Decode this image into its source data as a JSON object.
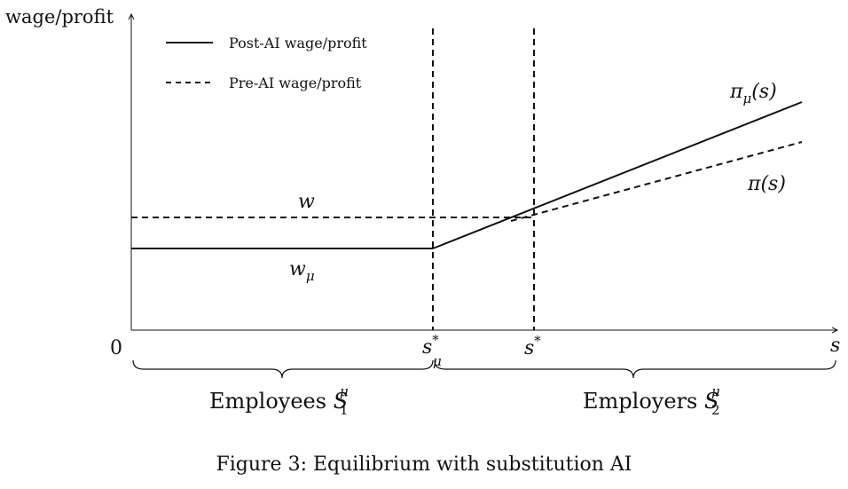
{
  "axes": {
    "y_label": "wage/profit",
    "x_label": "s",
    "origin_label": "0"
  },
  "legend": {
    "post": "Post-AI wage/profit",
    "pre": "Pre-AI wage/profit"
  },
  "curve_labels": {
    "w": "w",
    "w_mu_base": "w",
    "w_mu_sub": "μ",
    "pi_mu_base": "π",
    "pi_mu_sub": "μ",
    "pi_mu_arg": "(s)",
    "pi_base": "π",
    "pi_arg": "(s)"
  },
  "thresholds": {
    "s_mu_base": "s",
    "s_mu_sup": "*",
    "s_mu_sub": "μ",
    "s_star_base": "s",
    "s_star_sup": "*"
  },
  "groups": {
    "employees_text": "Employees",
    "employees_base": "S",
    "employees_sub": "1",
    "employees_sup": "μ",
    "employers_text": "Employers",
    "employers_base": "S",
    "employers_sub": "2",
    "employers_sup": "μ"
  },
  "caption": "Figure 3: Equilibrium with substitution AI"
}
